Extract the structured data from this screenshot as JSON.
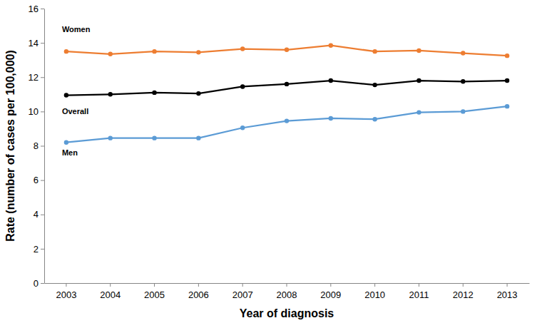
{
  "chart_data": {
    "type": "line",
    "x_label": "Year of diagnosis",
    "y_label": "Rate (number of cases per 100,000)",
    "categories": [
      "2003",
      "2004",
      "2005",
      "2006",
      "2007",
      "2008",
      "2009",
      "2010",
      "2011",
      "2012",
      "2013"
    ],
    "series": [
      {
        "name": "Women",
        "color": "#ed7d31",
        "values": [
          13.5,
          13.35,
          13.5,
          13.45,
          13.65,
          13.6,
          13.85,
          13.5,
          13.55,
          13.4,
          13.25
        ]
      },
      {
        "name": "Overall",
        "color": "#000000",
        "values": [
          10.95,
          11.0,
          11.1,
          11.05,
          11.45,
          11.6,
          11.8,
          11.55,
          11.8,
          11.75,
          11.8
        ]
      },
      {
        "name": "Men",
        "color": "#5b9bd5",
        "values": [
          8.2,
          8.45,
          8.45,
          8.45,
          9.05,
          9.45,
          9.6,
          9.55,
          9.95,
          10.0,
          10.3
        ]
      }
    ],
    "ylim": [
      0,
      16
    ],
    "yticks": [
      0,
      2,
      4,
      6,
      8,
      10,
      12,
      14,
      16
    ],
    "grid": false,
    "marker": "circle",
    "line_style": "solid"
  }
}
